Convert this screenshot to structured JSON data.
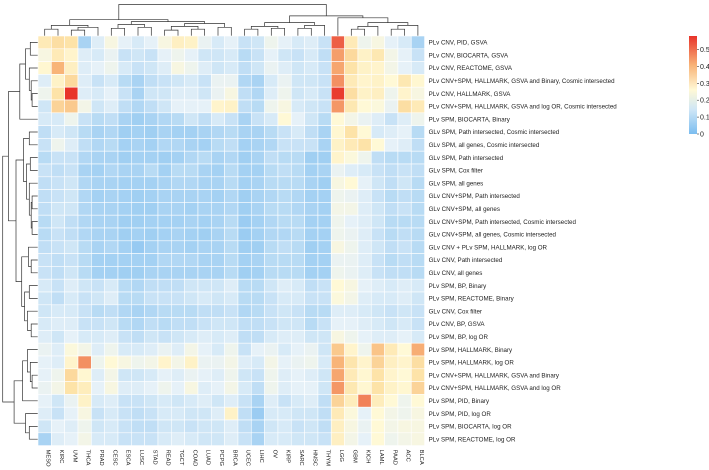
{
  "chart_data": {
    "type": "heatmap",
    "title": "",
    "xlabel": "",
    "ylabel": "",
    "columns": [
      "MESO",
      "KIRC",
      "UVM",
      "THCA",
      "PRAD",
      "CESC",
      "ESCA",
      "LUSC",
      "STAD",
      "READ",
      "TGCT",
      "COAD",
      "LUAD",
      "PCPG",
      "BRCA",
      "UCEC",
      "LIHC",
      "OV",
      "KIRP",
      "SARC",
      "HNSC",
      "THYM",
      "LGG",
      "GBM",
      "KICH",
      "LAML",
      "PAAD",
      "ACC",
      "BLCA"
    ],
    "rows": [
      "PLv CNV, PID, GSVA",
      "PLv CNV, BIOCARTA, GSVA",
      "PLv CNV, REACTOME, GSVA",
      "PLv CNV+SPM, HALLMARK, GSVA and Binary, Cosmic intersected",
      "PLv CNV, HALLMARK, GSVA",
      "PLv CNV+SPM, HALLMARK, GSVA and log OR, Cosmic intersected",
      "PLv SPM, BIOCARTA, Binary",
      "GLv SPM, Path intersected, Cosmic intersected",
      "GLv SPM, all genes, Cosmic intersected",
      "GLv SPM, Path intersected",
      "GLv SPM, Cox filter",
      "GLv SPM, all genes",
      "GLv CNV+SPM, Path intersected",
      "GLv CNV+SPM, all genes",
      "GLv CNV+SPM, Path intersected, Cosmic intersected",
      "GLv CNV+SPM, all genes, Cosmic intersected",
      "GLv CNV + PLv SPM, HALLMARK, log OR",
      "GLv CNV, Path intersected",
      "GLv CNV, all genes",
      "PLv SPM, BP, Binary",
      "PLv SPM, REACTOME, Binary",
      "GLv CNV, Cox filter",
      "PLv CNV, BP, GSVA",
      "PLv SPM, BP, log OR",
      "PLv SPM, HALLMARK, Binary",
      "PLv SPM, HALLMARK, log OR",
      "PLv CNV+SPM, HALLMARK, GSVA and Binary",
      "PLv CNV+SPM, HALLMARK, GSVA and log OR",
      "PLv SPM, PID, Binary",
      "PLv SPM, PID, log OR",
      "PLv SPM, BIOCARTA, log OR",
      "PLv SPM, REACTOME, log OR"
    ],
    "values": [
      [
        0.3,
        0.34,
        0.33,
        0.1,
        0.17,
        0.22,
        0.18,
        0.16,
        0.18,
        0.22,
        0.28,
        0.27,
        0.19,
        0.16,
        0.18,
        0.14,
        0.15,
        0.2,
        0.18,
        0.16,
        0.17,
        0.14,
        0.53,
        0.3,
        0.2,
        0.22,
        0.18,
        0.16,
        0.1
      ],
      [
        0.22,
        0.3,
        0.26,
        0.17,
        0.16,
        0.19,
        0.14,
        0.15,
        0.14,
        0.18,
        0.2,
        0.18,
        0.15,
        0.15,
        0.16,
        0.12,
        0.14,
        0.18,
        0.15,
        0.14,
        0.16,
        0.13,
        0.45,
        0.35,
        0.27,
        0.31,
        0.21,
        0.18,
        0.14
      ],
      [
        0.25,
        0.42,
        0.28,
        0.17,
        0.18,
        0.2,
        0.16,
        0.14,
        0.15,
        0.17,
        0.22,
        0.2,
        0.17,
        0.15,
        0.16,
        0.13,
        0.15,
        0.19,
        0.17,
        0.15,
        0.16,
        0.14,
        0.44,
        0.33,
        0.27,
        0.26,
        0.21,
        0.18,
        0.16
      ],
      [
        0.17,
        0.27,
        0.35,
        0.17,
        0.14,
        0.16,
        0.12,
        0.1,
        0.13,
        0.14,
        0.15,
        0.16,
        0.14,
        0.19,
        0.19,
        0.11,
        0.1,
        0.16,
        0.19,
        0.15,
        0.15,
        0.14,
        0.47,
        0.3,
        0.26,
        0.27,
        0.24,
        0.31,
        0.25
      ],
      [
        0.2,
        0.33,
        0.58,
        0.17,
        0.16,
        0.18,
        0.14,
        0.1,
        0.15,
        0.15,
        0.17,
        0.17,
        0.15,
        0.19,
        0.22,
        0.13,
        0.11,
        0.17,
        0.2,
        0.15,
        0.16,
        0.14,
        0.57,
        0.34,
        0.27,
        0.28,
        0.2,
        0.26,
        0.22
      ],
      [
        0.15,
        0.36,
        0.38,
        0.21,
        0.15,
        0.17,
        0.13,
        0.11,
        0.13,
        0.15,
        0.18,
        0.18,
        0.18,
        0.26,
        0.27,
        0.13,
        0.12,
        0.2,
        0.22,
        0.16,
        0.15,
        0.14,
        0.46,
        0.31,
        0.24,
        0.23,
        0.19,
        0.34,
        0.3
      ],
      [
        0.16,
        0.16,
        0.2,
        0.14,
        0.12,
        0.13,
        0.1,
        0.08,
        0.1,
        0.11,
        0.12,
        0.15,
        0.13,
        0.16,
        0.14,
        0.1,
        0.14,
        0.16,
        0.24,
        0.18,
        0.15,
        0.12,
        0.24,
        0.21,
        0.19,
        0.17,
        0.14,
        0.17,
        0.2
      ],
      [
        0.13,
        0.16,
        0.15,
        0.12,
        0.1,
        0.11,
        0.08,
        0.09,
        0.08,
        0.1,
        0.09,
        0.09,
        0.1,
        0.11,
        0.12,
        0.1,
        0.1,
        0.12,
        0.14,
        0.16,
        0.13,
        0.1,
        0.25,
        0.33,
        0.24,
        0.16,
        0.17,
        0.18,
        0.12
      ],
      [
        0.14,
        0.2,
        0.17,
        0.13,
        0.11,
        0.12,
        0.09,
        0.1,
        0.09,
        0.11,
        0.11,
        0.1,
        0.09,
        0.12,
        0.13,
        0.09,
        0.1,
        0.11,
        0.14,
        0.14,
        0.14,
        0.1,
        0.27,
        0.3,
        0.33,
        0.24,
        0.18,
        0.17,
        0.13
      ],
      [
        0.12,
        0.14,
        0.14,
        0.11,
        0.1,
        0.1,
        0.08,
        0.09,
        0.09,
        0.08,
        0.09,
        0.11,
        0.12,
        0.1,
        0.11,
        0.08,
        0.1,
        0.13,
        0.12,
        0.12,
        0.08,
        0.08,
        0.26,
        0.23,
        0.2,
        0.13,
        0.12,
        0.12,
        0.12
      ],
      [
        0.14,
        0.13,
        0.14,
        0.1,
        0.09,
        0.11,
        0.1,
        0.1,
        0.12,
        0.09,
        0.12,
        0.12,
        0.1,
        0.09,
        0.12,
        0.09,
        0.09,
        0.12,
        0.13,
        0.12,
        0.09,
        0.1,
        0.19,
        0.17,
        0.16,
        0.14,
        0.13,
        0.14,
        0.13
      ],
      [
        0.13,
        0.14,
        0.15,
        0.11,
        0.1,
        0.1,
        0.09,
        0.09,
        0.09,
        0.1,
        0.11,
        0.11,
        0.1,
        0.1,
        0.12,
        0.09,
        0.1,
        0.12,
        0.12,
        0.12,
        0.1,
        0.08,
        0.22,
        0.24,
        0.18,
        0.15,
        0.13,
        0.15,
        0.12
      ],
      [
        0.13,
        0.14,
        0.15,
        0.11,
        0.09,
        0.1,
        0.09,
        0.08,
        0.09,
        0.1,
        0.1,
        0.1,
        0.1,
        0.09,
        0.11,
        0.08,
        0.1,
        0.11,
        0.12,
        0.11,
        0.09,
        0.09,
        0.2,
        0.19,
        0.17,
        0.14,
        0.12,
        0.13,
        0.12
      ],
      [
        0.13,
        0.15,
        0.15,
        0.11,
        0.1,
        0.1,
        0.09,
        0.08,
        0.08,
        0.1,
        0.1,
        0.09,
        0.1,
        0.1,
        0.11,
        0.08,
        0.1,
        0.12,
        0.12,
        0.11,
        0.1,
        0.09,
        0.21,
        0.21,
        0.17,
        0.15,
        0.13,
        0.14,
        0.12
      ],
      [
        0.12,
        0.15,
        0.13,
        0.11,
        0.1,
        0.1,
        0.08,
        0.08,
        0.09,
        0.09,
        0.09,
        0.1,
        0.09,
        0.1,
        0.12,
        0.07,
        0.09,
        0.11,
        0.12,
        0.12,
        0.09,
        0.09,
        0.2,
        0.18,
        0.17,
        0.15,
        0.12,
        0.12,
        0.12
      ],
      [
        0.12,
        0.14,
        0.13,
        0.11,
        0.1,
        0.1,
        0.08,
        0.09,
        0.08,
        0.09,
        0.1,
        0.09,
        0.08,
        0.1,
        0.12,
        0.07,
        0.09,
        0.11,
        0.11,
        0.12,
        0.09,
        0.09,
        0.2,
        0.19,
        0.17,
        0.14,
        0.12,
        0.13,
        0.12
      ],
      [
        0.13,
        0.14,
        0.15,
        0.12,
        0.1,
        0.11,
        0.09,
        0.06,
        0.09,
        0.1,
        0.1,
        0.09,
        0.1,
        0.1,
        0.12,
        0.08,
        0.08,
        0.12,
        0.13,
        0.12,
        0.08,
        0.09,
        0.22,
        0.2,
        0.17,
        0.15,
        0.13,
        0.14,
        0.12
      ],
      [
        0.14,
        0.13,
        0.14,
        0.12,
        0.09,
        0.09,
        0.09,
        0.09,
        0.09,
        0.11,
        0.11,
        0.11,
        0.1,
        0.1,
        0.12,
        0.09,
        0.1,
        0.12,
        0.12,
        0.12,
        0.09,
        0.09,
        0.19,
        0.19,
        0.17,
        0.14,
        0.12,
        0.13,
        0.12
      ],
      [
        0.14,
        0.13,
        0.15,
        0.12,
        0.09,
        0.09,
        0.08,
        0.08,
        0.1,
        0.1,
        0.1,
        0.1,
        0.1,
        0.1,
        0.12,
        0.08,
        0.09,
        0.12,
        0.12,
        0.12,
        0.09,
        0.09,
        0.2,
        0.19,
        0.17,
        0.14,
        0.13,
        0.13,
        0.12
      ],
      [
        0.16,
        0.14,
        0.17,
        0.15,
        0.14,
        0.16,
        0.12,
        0.11,
        0.13,
        0.13,
        0.13,
        0.15,
        0.15,
        0.15,
        0.17,
        0.12,
        0.12,
        0.15,
        0.17,
        0.16,
        0.13,
        0.14,
        0.24,
        0.22,
        0.18,
        0.17,
        0.16,
        0.17,
        0.16
      ],
      [
        0.15,
        0.13,
        0.16,
        0.14,
        0.15,
        0.17,
        0.12,
        0.12,
        0.14,
        0.14,
        0.14,
        0.15,
        0.16,
        0.15,
        0.16,
        0.12,
        0.12,
        0.14,
        0.16,
        0.16,
        0.14,
        0.14,
        0.23,
        0.21,
        0.17,
        0.16,
        0.16,
        0.17,
        0.15
      ],
      [
        0.15,
        0.16,
        0.16,
        0.14,
        0.12,
        0.13,
        0.11,
        0.1,
        0.11,
        0.12,
        0.12,
        0.12,
        0.13,
        0.13,
        0.14,
        0.11,
        0.12,
        0.14,
        0.15,
        0.14,
        0.12,
        0.12,
        0.17,
        0.17,
        0.16,
        0.15,
        0.14,
        0.15,
        0.14
      ],
      [
        0.16,
        0.17,
        0.17,
        0.14,
        0.14,
        0.15,
        0.12,
        0.11,
        0.13,
        0.12,
        0.13,
        0.13,
        0.14,
        0.15,
        0.15,
        0.13,
        0.13,
        0.14,
        0.15,
        0.15,
        0.12,
        0.14,
        0.18,
        0.18,
        0.17,
        0.16,
        0.15,
        0.16,
        0.14
      ],
      [
        0.17,
        0.15,
        0.18,
        0.16,
        0.16,
        0.17,
        0.14,
        0.13,
        0.15,
        0.14,
        0.15,
        0.16,
        0.17,
        0.16,
        0.17,
        0.13,
        0.13,
        0.16,
        0.17,
        0.17,
        0.15,
        0.15,
        0.22,
        0.2,
        0.18,
        0.17,
        0.17,
        0.18,
        0.16
      ],
      [
        0.19,
        0.17,
        0.23,
        0.21,
        0.17,
        0.2,
        0.16,
        0.16,
        0.17,
        0.19,
        0.17,
        0.21,
        0.18,
        0.16,
        0.2,
        0.14,
        0.18,
        0.19,
        0.16,
        0.18,
        0.19,
        0.15,
        0.38,
        0.26,
        0.2,
        0.39,
        0.3,
        0.24,
        0.43
      ],
      [
        0.18,
        0.17,
        0.26,
        0.47,
        0.2,
        0.24,
        0.22,
        0.2,
        0.21,
        0.26,
        0.21,
        0.27,
        0.19,
        0.19,
        0.21,
        0.17,
        0.16,
        0.21,
        0.18,
        0.19,
        0.2,
        0.16,
        0.42,
        0.32,
        0.26,
        0.36,
        0.28,
        0.26,
        0.34
      ],
      [
        0.18,
        0.2,
        0.35,
        0.25,
        0.17,
        0.21,
        0.15,
        0.15,
        0.16,
        0.18,
        0.17,
        0.19,
        0.18,
        0.17,
        0.2,
        0.15,
        0.14,
        0.2,
        0.17,
        0.18,
        0.17,
        0.15,
        0.44,
        0.3,
        0.25,
        0.33,
        0.26,
        0.24,
        0.33
      ],
      [
        0.19,
        0.21,
        0.33,
        0.29,
        0.18,
        0.22,
        0.17,
        0.17,
        0.18,
        0.2,
        0.18,
        0.22,
        0.17,
        0.18,
        0.21,
        0.16,
        0.13,
        0.2,
        0.17,
        0.18,
        0.18,
        0.15,
        0.46,
        0.31,
        0.25,
        0.33,
        0.27,
        0.25,
        0.36
      ],
      [
        0.18,
        0.15,
        0.19,
        0.27,
        0.16,
        0.17,
        0.14,
        0.14,
        0.15,
        0.16,
        0.15,
        0.16,
        0.17,
        0.15,
        0.17,
        0.14,
        0.1,
        0.17,
        0.14,
        0.16,
        0.17,
        0.13,
        0.36,
        0.29,
        0.49,
        0.29,
        0.24,
        0.2,
        0.24
      ],
      [
        0.17,
        0.14,
        0.18,
        0.22,
        0.14,
        0.16,
        0.14,
        0.13,
        0.14,
        0.16,
        0.16,
        0.15,
        0.15,
        0.17,
        0.27,
        0.13,
        0.07,
        0.16,
        0.16,
        0.15,
        0.15,
        0.13,
        0.3,
        0.23,
        0.18,
        0.24,
        0.21,
        0.2,
        0.22
      ],
      [
        0.15,
        0.18,
        0.17,
        0.2,
        0.15,
        0.16,
        0.14,
        0.13,
        0.13,
        0.15,
        0.15,
        0.14,
        0.15,
        0.15,
        0.17,
        0.13,
        0.1,
        0.15,
        0.16,
        0.14,
        0.15,
        0.13,
        0.28,
        0.22,
        0.19,
        0.24,
        0.21,
        0.22,
        0.22
      ],
      [
        0.1,
        0.17,
        0.18,
        0.21,
        0.16,
        0.16,
        0.14,
        0.14,
        0.14,
        0.16,
        0.17,
        0.16,
        0.15,
        0.15,
        0.17,
        0.14,
        0.1,
        0.16,
        0.16,
        0.15,
        0.15,
        0.14,
        0.28,
        0.21,
        0.18,
        0.24,
        0.2,
        0.21,
        0.22
      ]
    ],
    "colorbar": {
      "ticks": [
        "0.5",
        "0.4",
        "0.3",
        "0.2",
        "0.1",
        "0"
      ],
      "tick_values": [
        0.5,
        0.4,
        0.3,
        0.2,
        0.1,
        0
      ],
      "range": [
        0,
        0.58
      ],
      "colormap": "blue-white-red"
    },
    "colors": {
      "low": "#7bbdf0",
      "mid": "#fff9d6",
      "high": "#e8332a"
    },
    "dendrograms": [
      "top",
      "left"
    ],
    "grid": true,
    "legend": "colorbar top-right"
  }
}
